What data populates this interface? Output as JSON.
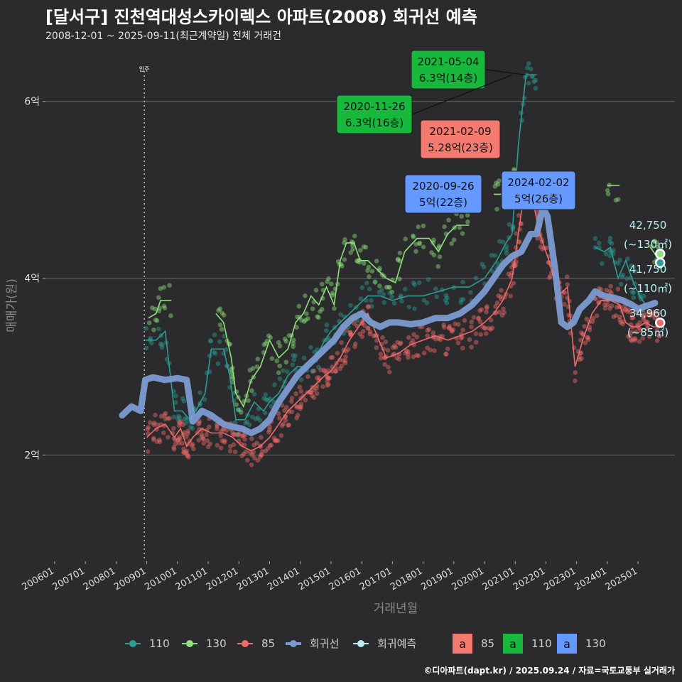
{
  "title": "[달서구] 진천역대성스카이렉스 아파트(2008) 회귀선 예측",
  "subtitle": "2008-12-01 ~ 2025-09-11(최근계약일) 전체 거래건",
  "caption": "©디아파트(dapt.kr) / 2025.09.24 / 자료=국토교통부 실거래가",
  "colors": {
    "s110": "#2a9d94",
    "s130": "#8ee07a",
    "s85": "#f06a6a",
    "regression": "#7b9bd1",
    "forecast": "#b8f0f0",
    "label85": "#f47a70",
    "label110": "#18b83c",
    "label130": "#6699ff"
  },
  "chart_data": {
    "type": "scatter",
    "xlabel": "거래년월",
    "ylabel": "매매가(원)",
    "x_ticks": [
      "200601",
      "200701",
      "200801",
      "200901",
      "201001",
      "201101",
      "201201",
      "201301",
      "201401",
      "201501",
      "201601",
      "201701",
      "201801",
      "201901",
      "202001",
      "202101",
      "202201",
      "202301",
      "202401",
      "202501"
    ],
    "x_range": [
      2005.7,
      2026.2
    ],
    "y_ticks": [
      {
        "value": 2,
        "label": "2억"
      },
      {
        "value": 4,
        "label": "4억"
      },
      {
        "value": 6,
        "label": "6억"
      }
    ],
    "y_range": [
      0.8,
      6.6
    ],
    "grid": true,
    "vline": {
      "x": 2008.92,
      "label": "입주"
    },
    "series": [
      {
        "name": "110",
        "kind": "line",
        "color_key": "s110",
        "points": [
          [
            2008.95,
            3.3
          ],
          [
            2009.3,
            3.3
          ],
          [
            2009.6,
            3.4
          ],
          [
            2009.9,
            2.5
          ],
          [
            2010.15,
            2.5
          ],
          [
            2010.4,
            2.4
          ],
          [
            2010.6,
            2.5
          ],
          [
            2010.9,
            2.7
          ],
          [
            2011.1,
            3.2
          ],
          [
            2011.5,
            3.2
          ],
          [
            2011.7,
            2.9
          ],
          [
            2011.9,
            2.4
          ],
          [
            2012.2,
            2.4
          ],
          [
            2012.5,
            2.6
          ],
          [
            2012.8,
            2.5
          ],
          [
            2013.0,
            2.6
          ],
          [
            2013.3,
            2.7
          ],
          [
            2013.6,
            2.9
          ],
          [
            2013.9,
            3.0
          ],
          [
            2014.2,
            3.0
          ],
          [
            2014.5,
            3.1
          ],
          [
            2014.8,
            3.3
          ],
          [
            2015.0,
            3.4
          ],
          [
            2015.3,
            3.5
          ],
          [
            2015.6,
            3.6
          ],
          [
            2015.9,
            3.7
          ],
          [
            2016.2,
            3.8
          ],
          [
            2016.6,
            3.8
          ],
          [
            2017.0,
            3.75
          ],
          [
            2017.5,
            3.8
          ],
          [
            2018.0,
            3.8
          ],
          [
            2018.5,
            3.85
          ],
          [
            2019.0,
            3.9
          ],
          [
            2019.5,
            3.9
          ],
          [
            2020.0,
            4.0
          ],
          [
            2020.4,
            4.2
          ],
          [
            2020.7,
            4.4
          ],
          [
            2020.9,
            4.5
          ],
          [
            2021.1,
            5.5
          ],
          [
            2021.35,
            6.3
          ],
          [
            2021.55,
            6.3
          ],
          [
            2021.7,
            6.3
          ]
        ]
      },
      {
        "name": "110-recent",
        "kind": "line",
        "color_key": "s110",
        "points": [
          [
            2023.6,
            4.35
          ],
          [
            2023.9,
            4.3
          ],
          [
            2024.1,
            4.35
          ],
          [
            2024.35,
            4.0
          ],
          [
            2024.6,
            4.2
          ],
          [
            2024.85,
            3.95
          ],
          [
            2025.05,
            3.8
          ],
          [
            2025.25,
            3.7
          ]
        ]
      },
      {
        "name": "130",
        "kind": "line",
        "color_key": "s130",
        "points": [
          [
            2009.05,
            3.55
          ],
          [
            2009.3,
            3.6
          ],
          [
            2009.45,
            3.75
          ],
          [
            2009.8,
            3.75
          ]
        ]
      },
      {
        "name": "130-b",
        "kind": "line",
        "color_key": "s130",
        "points": [
          [
            2011.25,
            3.6
          ],
          [
            2011.5,
            3.5
          ],
          [
            2011.75,
            3.1
          ],
          [
            2011.9,
            2.7
          ],
          [
            2012.15,
            2.55
          ],
          [
            2012.4,
            2.85
          ],
          [
            2012.7,
            3.0
          ],
          [
            2013.0,
            3.3
          ],
          [
            2013.3,
            3.1
          ],
          [
            2013.6,
            3.2
          ],
          [
            2013.85,
            3.5
          ],
          [
            2014.1,
            3.6
          ],
          [
            2014.35,
            3.8
          ],
          [
            2014.6,
            3.7
          ],
          [
            2014.85,
            3.9
          ],
          [
            2015.1,
            3.7
          ],
          [
            2015.3,
            4.2
          ],
          [
            2015.5,
            4.4
          ],
          [
            2015.75,
            4.4
          ],
          [
            2015.95,
            4.2
          ],
          [
            2016.2,
            4.2
          ],
          [
            2016.5,
            4.1
          ],
          [
            2016.8,
            4.0
          ],
          [
            2017.1,
            3.95
          ],
          [
            2017.4,
            4.3
          ],
          [
            2017.8,
            4.45
          ],
          [
            2018.2,
            4.45
          ],
          [
            2018.5,
            4.3
          ],
          [
            2018.8,
            4.5
          ],
          [
            2019.1,
            4.6
          ],
          [
            2019.5,
            4.6
          ]
        ]
      },
      {
        "name": "130-c",
        "kind": "line",
        "color_key": "s130",
        "points": [
          [
            2020.3,
            4.95
          ],
          [
            2020.6,
            4.95
          ],
          [
            2020.9,
            5.05
          ],
          [
            2021.2,
            5.15
          ]
        ]
      },
      {
        "name": "130-d",
        "kind": "line",
        "color_key": "s130",
        "points": [
          [
            2024.0,
            5.05
          ],
          [
            2024.4,
            5.05
          ]
        ]
      },
      {
        "name": "130-e",
        "kind": "line",
        "color_key": "s130",
        "points": [
          [
            2025.4,
            4.35
          ],
          [
            2025.6,
            4.25
          ],
          [
            2025.75,
            4.3
          ]
        ]
      },
      {
        "name": "85",
        "kind": "line",
        "color_key": "s85",
        "points": [
          [
            2009.0,
            2.2
          ],
          [
            2009.3,
            2.3
          ],
          [
            2009.6,
            2.35
          ],
          [
            2009.9,
            2.2
          ],
          [
            2010.1,
            2.3
          ],
          [
            2010.3,
            2.1
          ],
          [
            2010.5,
            2.2
          ],
          [
            2010.8,
            2.3
          ],
          [
            2011.1,
            2.25
          ],
          [
            2011.5,
            2.25
          ],
          [
            2011.8,
            2.2
          ],
          [
            2012.1,
            2.1
          ],
          [
            2012.4,
            2.05
          ],
          [
            2012.7,
            2.1
          ],
          [
            2013.0,
            2.2
          ],
          [
            2013.3,
            2.35
          ],
          [
            2013.6,
            2.5
          ],
          [
            2013.9,
            2.6
          ],
          [
            2014.2,
            2.7
          ],
          [
            2014.5,
            2.8
          ],
          [
            2014.8,
            2.9
          ],
          [
            2015.0,
            2.95
          ],
          [
            2015.3,
            3.1
          ],
          [
            2015.6,
            3.3
          ],
          [
            2015.9,
            3.45
          ],
          [
            2016.2,
            3.6
          ],
          [
            2016.5,
            3.35
          ],
          [
            2016.8,
            3.1
          ],
          [
            2017.2,
            3.15
          ],
          [
            2017.6,
            3.25
          ],
          [
            2018.0,
            3.3
          ],
          [
            2018.4,
            3.35
          ],
          [
            2018.8,
            3.3
          ],
          [
            2019.2,
            3.35
          ],
          [
            2019.6,
            3.4
          ],
          [
            2020.0,
            3.5
          ],
          [
            2020.3,
            3.6
          ],
          [
            2020.6,
            3.75
          ],
          [
            2020.9,
            4.0
          ],
          [
            2021.1,
            4.5
          ],
          [
            2021.3,
            5.0
          ],
          [
            2021.5,
            5.0
          ],
          [
            2021.8,
            4.5
          ],
          [
            2022.1,
            4.2
          ],
          [
            2022.4,
            3.8
          ],
          [
            2022.7,
            3.9
          ],
          [
            2022.95,
            3.0
          ],
          [
            2023.2,
            3.3
          ],
          [
            2023.5,
            3.6
          ],
          [
            2023.8,
            3.75
          ],
          [
            2024.1,
            3.75
          ],
          [
            2024.4,
            3.7
          ],
          [
            2024.6,
            3.5
          ],
          [
            2024.8,
            3.45
          ],
          [
            2025.0,
            3.45
          ],
          [
            2025.25,
            3.5
          ],
          [
            2025.5,
            3.45
          ],
          [
            2025.75,
            3.45
          ]
        ]
      },
      {
        "name": "회귀선",
        "kind": "regression",
        "color_key": "regression",
        "points": [
          [
            2008.2,
            2.45
          ],
          [
            2008.5,
            2.55
          ],
          [
            2008.8,
            2.5
          ],
          [
            2008.95,
            2.85
          ],
          [
            2009.2,
            2.88
          ],
          [
            2009.6,
            2.85
          ],
          [
            2010.0,
            2.87
          ],
          [
            2010.3,
            2.85
          ],
          [
            2010.5,
            2.38
          ],
          [
            2010.8,
            2.5
          ],
          [
            2011.1,
            2.45
          ],
          [
            2011.5,
            2.35
          ],
          [
            2011.8,
            2.32
          ],
          [
            2012.1,
            2.3
          ],
          [
            2012.4,
            2.25
          ],
          [
            2012.7,
            2.3
          ],
          [
            2013.0,
            2.4
          ],
          [
            2013.3,
            2.6
          ],
          [
            2013.6,
            2.75
          ],
          [
            2013.9,
            2.9
          ],
          [
            2014.2,
            3.0
          ],
          [
            2014.5,
            3.1
          ],
          [
            2014.8,
            3.2
          ],
          [
            2015.1,
            3.3
          ],
          [
            2015.4,
            3.45
          ],
          [
            2015.7,
            3.55
          ],
          [
            2016.0,
            3.6
          ],
          [
            2016.3,
            3.5
          ],
          [
            2016.6,
            3.45
          ],
          [
            2016.9,
            3.5
          ],
          [
            2017.2,
            3.5
          ],
          [
            2017.6,
            3.48
          ],
          [
            2018.0,
            3.5
          ],
          [
            2018.4,
            3.55
          ],
          [
            2018.8,
            3.55
          ],
          [
            2019.2,
            3.6
          ],
          [
            2019.6,
            3.7
          ],
          [
            2020.0,
            3.85
          ],
          [
            2020.3,
            4.0
          ],
          [
            2020.6,
            4.15
          ],
          [
            2020.9,
            4.25
          ],
          [
            2021.2,
            4.3
          ],
          [
            2021.5,
            4.5
          ],
          [
            2021.7,
            4.5
          ],
          [
            2021.9,
            4.8
          ],
          [
            2022.05,
            4.7
          ],
          [
            2022.3,
            4.1
          ],
          [
            2022.5,
            3.5
          ],
          [
            2022.7,
            3.45
          ],
          [
            2022.9,
            3.5
          ],
          [
            2023.1,
            3.65
          ],
          [
            2023.4,
            3.75
          ],
          [
            2023.6,
            3.85
          ],
          [
            2023.9,
            3.8
          ],
          [
            2024.2,
            3.78
          ],
          [
            2024.5,
            3.75
          ],
          [
            2024.8,
            3.7
          ],
          [
            2025.0,
            3.65
          ],
          [
            2025.2,
            3.68
          ],
          [
            2025.4,
            3.7
          ],
          [
            2025.55,
            3.72
          ]
        ]
      }
    ],
    "forecast_points": [
      {
        "x": 2025.72,
        "y": 4.275,
        "color_key": "s130",
        "value": "42,750",
        "area": "(~130㎡)"
      },
      {
        "x": 2025.72,
        "y": 4.175,
        "color_key": "s110",
        "value": "41,750",
        "area": "(~110㎡)"
      },
      {
        "x": 2025.72,
        "y": 3.496,
        "color_key": "s85",
        "value": "34,960",
        "area": "(~85㎡)"
      }
    ],
    "annotations": [
      {
        "date": "2021-05-04",
        "price": "6.3억(14층)",
        "fill_key": "label110",
        "x": 2021.34,
        "y": 6.3
      },
      {
        "date": "2020-11-26",
        "price": "6.3억(16층)",
        "fill_key": "label110",
        "x": 2020.9,
        "y": 6.3
      },
      {
        "date": "2021-02-09",
        "price": "5.28억(23층)",
        "fill_key": "label85",
        "x": 2021.1,
        "y": 5.28
      },
      {
        "date": "2020-09-26",
        "price": "5억(22층)",
        "fill_key": "label130",
        "x": 2020.74,
        "y": 5.0
      },
      {
        "date": "2024-02-02",
        "price": "5억(26층)",
        "fill_key": "label130",
        "x": 2024.09,
        "y": 5.0
      }
    ],
    "legend": {
      "placement": "bottom",
      "items": [
        {
          "label": "110",
          "color_key": "s110"
        },
        {
          "label": "130",
          "color_key": "s130"
        },
        {
          "label": "85",
          "color_key": "s85"
        },
        {
          "label": "회귀선",
          "color_key": "regression"
        },
        {
          "label": "회귀예측",
          "color_key": "forecast"
        }
      ],
      "box_items": [
        {
          "glyph": "a",
          "label": "85",
          "color_key": "label85"
        },
        {
          "glyph": "a",
          "label": "110",
          "color_key": "label110"
        },
        {
          "glyph": "a",
          "label": "130",
          "color_key": "label130"
        }
      ]
    }
  }
}
